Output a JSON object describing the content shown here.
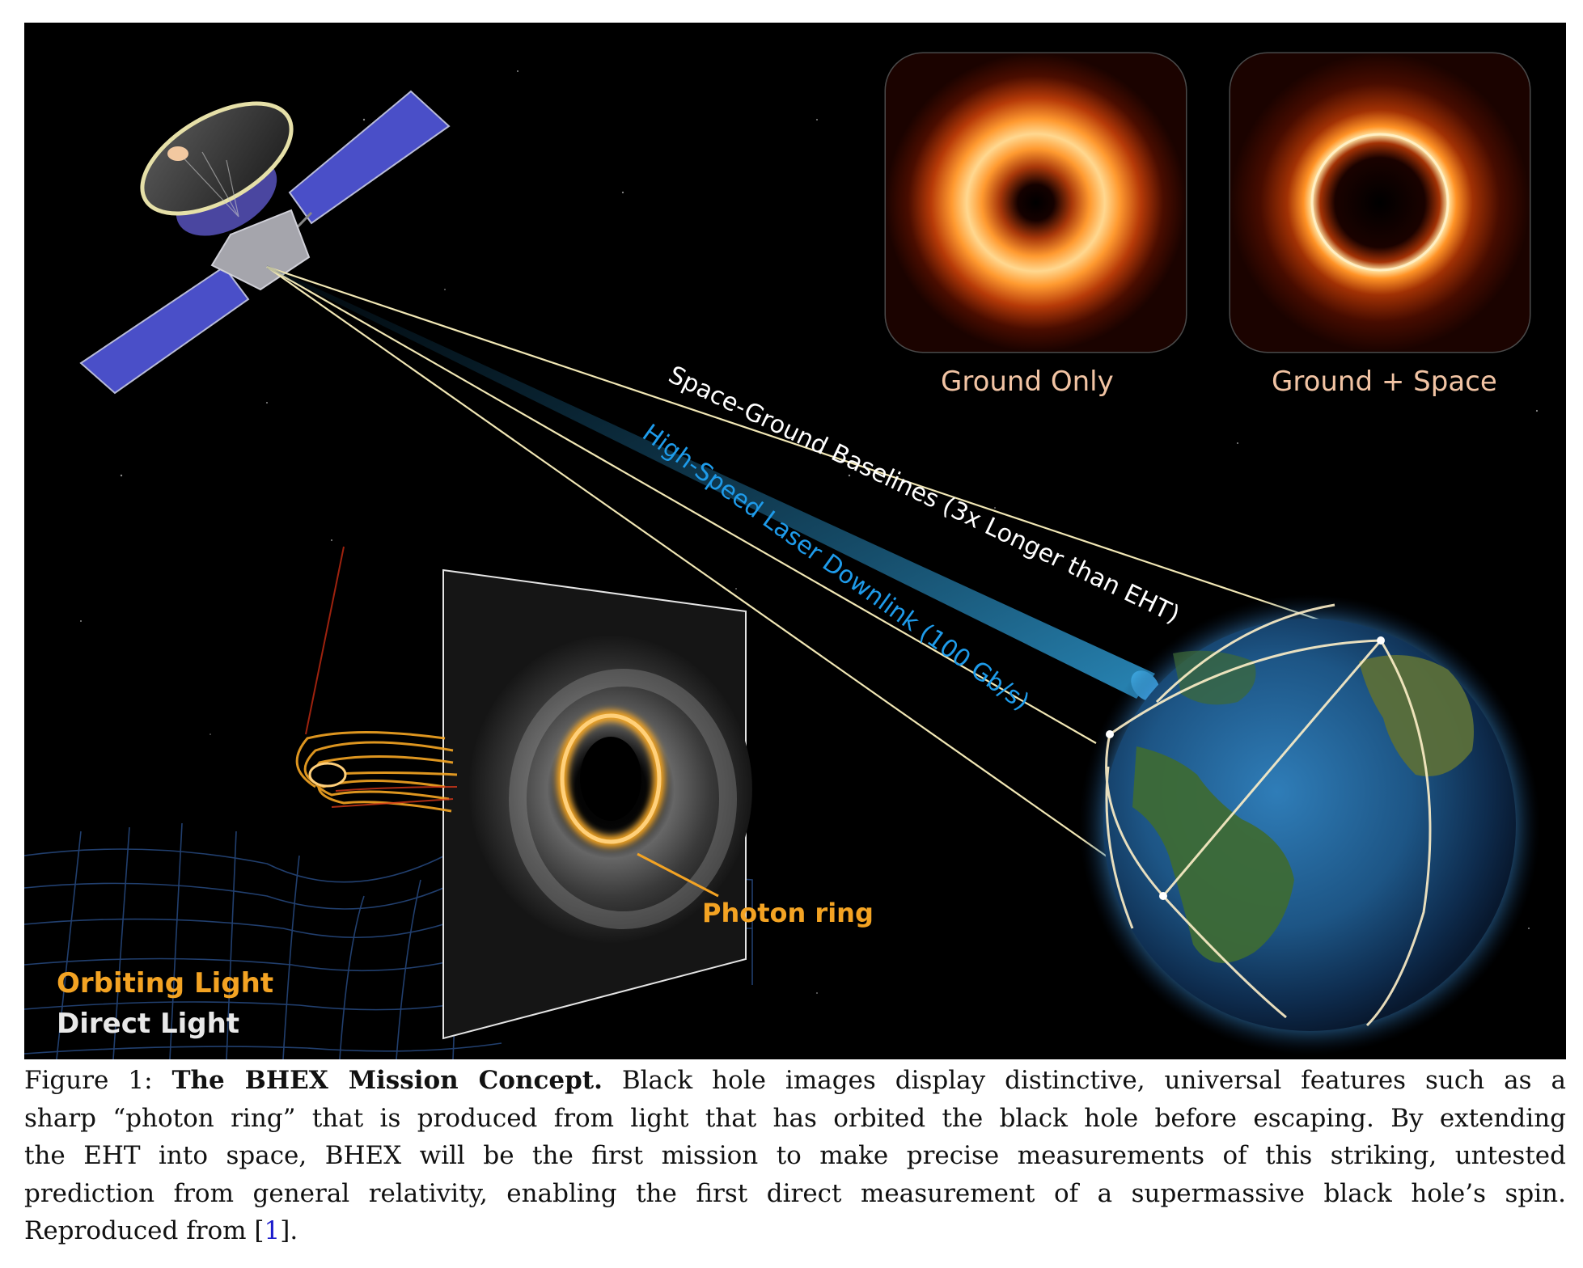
{
  "figure": {
    "thumb_left_label": "Ground Only",
    "thumb_right_label": "Ground + Space",
    "baselines_label": "Space-Ground Baselines (3x Longer than EHT)",
    "laser_label": "High-Speed Laser Downlink (100 Gb/s)",
    "photon_ring_label": "Photon ring",
    "orbiting_light_label": "Orbiting Light",
    "direct_light_label": "Direct Light"
  },
  "caption": {
    "lead": "Figure 1: ",
    "title": "The BHEX Mission Concept.",
    "l1_rest": " Black hole images display distinctive, universal features such as a",
    "l2": "sharp “photon ring” that is produced from light that has orbited the black hole before escaping. By extending",
    "l3": "the EHT into space, BHEX will be the first mission to make precise measurements of this striking, untested",
    "l4": "prediction from general relativity, enabling the first direct measurement of a supermassive black hole’s spin.",
    "l5_pre": "Reproduced from [",
    "l5_ref": "1",
    "l5_post": "]."
  },
  "colors": {
    "background": "#000000",
    "ring_orange": "#f5a623",
    "laser_blue": "#1e9bea",
    "panel_blue": "#4a4fc8",
    "thumb_label": "#f2c4a4"
  }
}
